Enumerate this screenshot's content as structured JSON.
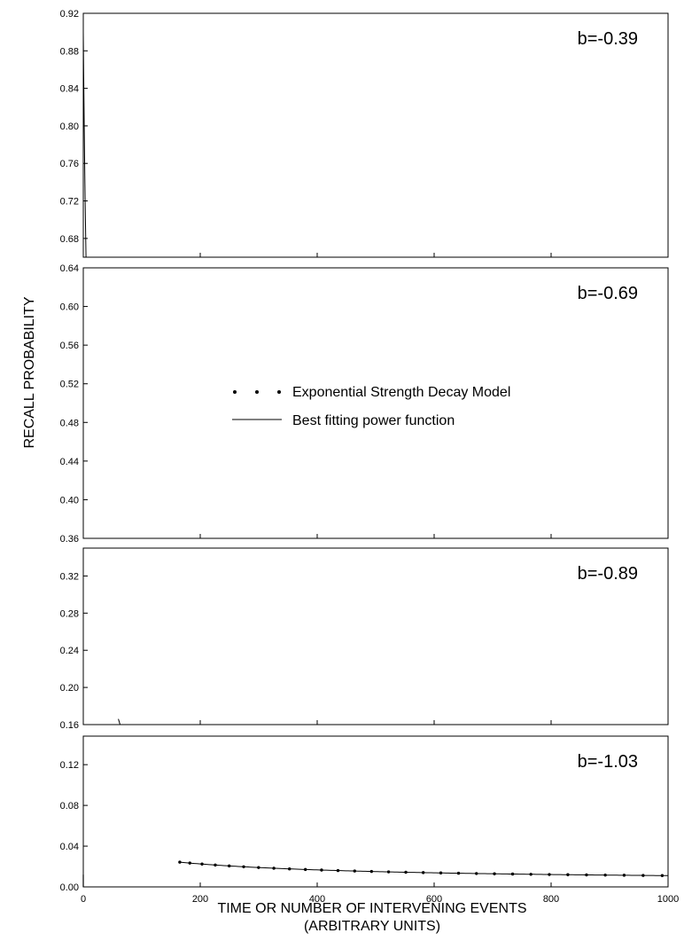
{
  "chart_data": {
    "type": "line",
    "ylabel": "RECALL PROBABILITY",
    "xlabel_lines": [
      "TIME  OR  NUMBER OF INTERVENING EVENTS",
      "(ARBITRARY UNITS)"
    ],
    "xlim": [
      0,
      1000
    ],
    "x_ticks": [
      0,
      200,
      400,
      600,
      800,
      1000
    ],
    "legend": {
      "placement": "middle of second panel",
      "entries": [
        {
          "marker": "dots",
          "label": "Exponential Strength Decay Model"
        },
        {
          "marker": "line",
          "label": "Best fitting power function"
        }
      ]
    },
    "panels": [
      {
        "annotation": "b=-0.39",
        "ylim": [
          0.66,
          0.92
        ],
        "y_ticks": [
          "0.68",
          "0.72",
          "0.76",
          "0.80",
          "0.84",
          "0.88",
          "0.92"
        ],
        "curve": {
          "x0": 0,
          "x1": 25,
          "a": 0.9,
          "rate": 0.012,
          "c": 1.15
        },
        "dots": {
          "x_start": 8,
          "x_end": 24.5,
          "count": 22,
          "spacing": "linear"
        }
      },
      {
        "annotation": "b=-0.69",
        "ylim": [
          0.36,
          0.64
        ],
        "y_ticks": [
          "0.36",
          "0.40",
          "0.44",
          "0.48",
          "0.52",
          "0.56",
          "0.60",
          "0.64"
        ],
        "curve": {
          "x0": 25,
          "x1": 62,
          "a": 0.9,
          "rate": 0.012,
          "c": 1.15
        },
        "dots": {
          "x_start": 25,
          "x_end": 61,
          "count": 24,
          "spacing": "linear"
        }
      },
      {
        "annotation": "b=-0.89",
        "ylim": [
          0.16,
          0.35
        ],
        "y_ticks": [
          "0.16",
          "0.20",
          "0.24",
          "0.28",
          "0.32"
        ],
        "curve": {
          "x0": 60,
          "x1": 148,
          "a": 0.9,
          "rate": 0.012,
          "c": 1.15
        },
        "dots": {
          "x_start": 64,
          "x_end": 140,
          "count": 14,
          "spacing": "log"
        }
      },
      {
        "annotation": "b=-1.03",
        "ylim": [
          0.0,
          0.148
        ],
        "y_ticks": [
          "0.00",
          "0.04",
          "0.08",
          "0.12"
        ],
        "curve": {
          "x0": 165,
          "x1": 1000,
          "a": 0.035,
          "rate": 0.0044,
          "c": 0.9
        },
        "dots": {
          "x_start": 165,
          "x_end": 990,
          "count": 30,
          "spacing": "power"
        },
        "origin_marker": {
          "x": 0,
          "y": 0.012
        }
      }
    ]
  }
}
